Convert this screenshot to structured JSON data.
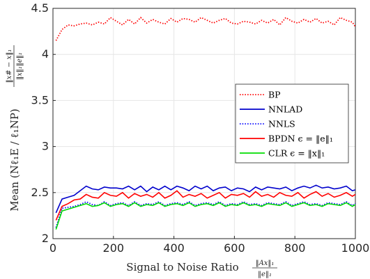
{
  "chart_data": {
    "type": "line",
    "xlabel": "Signal to Noise Ratio",
    "xlabel_fraction": {
      "numerator": "‖Ax‖₁",
      "denominator": "‖e‖₁"
    },
    "ylabel": "Mean (Nℓ₁E / ℓ₁NP)",
    "ylabel_fraction": {
      "numerator": "‖x# − x‖₁",
      "denominator": "‖x‖₁‖e‖₁"
    },
    "xlim": [
      0,
      1000
    ],
    "ylim": [
      2,
      4.5
    ],
    "xticks": [
      "0",
      "200",
      "400",
      "600",
      "800",
      "1000"
    ],
    "yticks": [
      "2",
      "2.5",
      "3",
      "3.5",
      "4",
      "4.5"
    ],
    "grid": true,
    "legend_position": "right",
    "x": [
      10,
      30,
      50,
      70,
      90,
      110,
      130,
      150,
      170,
      190,
      210,
      230,
      250,
      270,
      290,
      310,
      330,
      350,
      370,
      390,
      410,
      430,
      450,
      470,
      490,
      510,
      530,
      550,
      570,
      590,
      610,
      630,
      650,
      670,
      690,
      710,
      730,
      750,
      770,
      790,
      810,
      830,
      850,
      870,
      890,
      910,
      930,
      950,
      970,
      990,
      1000
    ],
    "series": [
      {
        "name": "BP",
        "color": "#ff0000",
        "style": "dotted",
        "values": [
          4.15,
          4.27,
          4.32,
          4.31,
          4.33,
          4.34,
          4.32,
          4.35,
          4.33,
          4.4,
          4.36,
          4.32,
          4.38,
          4.33,
          4.4,
          4.34,
          4.38,
          4.35,
          4.33,
          4.39,
          4.35,
          4.39,
          4.38,
          4.35,
          4.4,
          4.37,
          4.34,
          4.37,
          4.39,
          4.34,
          4.33,
          4.36,
          4.35,
          4.33,
          4.37,
          4.34,
          4.38,
          4.32,
          4.4,
          4.36,
          4.34,
          4.38,
          4.35,
          4.39,
          4.34,
          4.36,
          4.32,
          4.4,
          4.37,
          4.35,
          4.3
        ]
      },
      {
        "name": "NNLAD",
        "color": "#0000cc",
        "style": "solid",
        "values": [
          2.28,
          2.43,
          2.45,
          2.47,
          2.52,
          2.57,
          2.54,
          2.53,
          2.56,
          2.55,
          2.55,
          2.54,
          2.57,
          2.53,
          2.57,
          2.51,
          2.56,
          2.53,
          2.57,
          2.53,
          2.57,
          2.55,
          2.52,
          2.57,
          2.54,
          2.57,
          2.52,
          2.55,
          2.56,
          2.52,
          2.55,
          2.54,
          2.51,
          2.56,
          2.53,
          2.56,
          2.55,
          2.54,
          2.56,
          2.52,
          2.55,
          2.57,
          2.55,
          2.58,
          2.55,
          2.56,
          2.54,
          2.55,
          2.57,
          2.52,
          2.53
        ]
      },
      {
        "name": "NNLS",
        "color": "#0000ff",
        "style": "dotted",
        "values": [
          2.12,
          2.33,
          2.34,
          2.35,
          2.37,
          2.4,
          2.37,
          2.36,
          2.4,
          2.36,
          2.38,
          2.39,
          2.36,
          2.4,
          2.36,
          2.38,
          2.37,
          2.4,
          2.36,
          2.38,
          2.39,
          2.37,
          2.4,
          2.36,
          2.38,
          2.39,
          2.37,
          2.4,
          2.36,
          2.38,
          2.37,
          2.4,
          2.37,
          2.38,
          2.36,
          2.39,
          2.38,
          2.37,
          2.4,
          2.36,
          2.38,
          2.4,
          2.37,
          2.38,
          2.36,
          2.39,
          2.38,
          2.37,
          2.4,
          2.36,
          2.38
        ]
      },
      {
        "name": "BPDN ϵ = ‖e‖₁",
        "color": "#ff0000",
        "style": "solid",
        "values": [
          2.2,
          2.35,
          2.38,
          2.42,
          2.43,
          2.48,
          2.45,
          2.44,
          2.5,
          2.47,
          2.46,
          2.5,
          2.44,
          2.49,
          2.46,
          2.48,
          2.45,
          2.5,
          2.44,
          2.47,
          2.52,
          2.45,
          2.48,
          2.46,
          2.49,
          2.44,
          2.47,
          2.5,
          2.44,
          2.48,
          2.47,
          2.49,
          2.45,
          2.51,
          2.46,
          2.48,
          2.45,
          2.5,
          2.47,
          2.46,
          2.5,
          2.44,
          2.48,
          2.51,
          2.46,
          2.49,
          2.45,
          2.47,
          2.5,
          2.46,
          2.48
        ]
      },
      {
        "name": "CLR ϵ = ‖x‖₁",
        "color": "#00dd00",
        "style": "solid",
        "values": [
          2.1,
          2.3,
          2.32,
          2.34,
          2.36,
          2.38,
          2.35,
          2.36,
          2.39,
          2.35,
          2.37,
          2.38,
          2.35,
          2.39,
          2.35,
          2.37,
          2.36,
          2.39,
          2.35,
          2.37,
          2.38,
          2.36,
          2.39,
          2.35,
          2.37,
          2.38,
          2.36,
          2.39,
          2.35,
          2.37,
          2.36,
          2.39,
          2.36,
          2.37,
          2.35,
          2.38,
          2.37,
          2.36,
          2.39,
          2.35,
          2.37,
          2.39,
          2.36,
          2.37,
          2.35,
          2.38,
          2.37,
          2.36,
          2.39,
          2.35,
          2.37
        ]
      }
    ]
  }
}
